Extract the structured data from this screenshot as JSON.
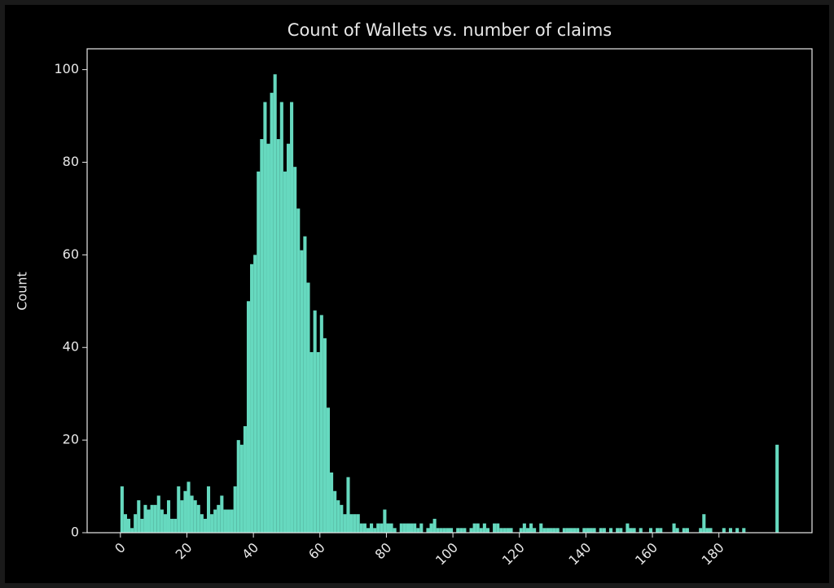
{
  "chart_data": {
    "type": "histogram",
    "title": "Count of Wallets vs. number of claims",
    "y_label": "Count",
    "bins": [
      0,
      1,
      2,
      3,
      4,
      5,
      6,
      7,
      8,
      9,
      10,
      11,
      12,
      13,
      14,
      15,
      16,
      17,
      18,
      19,
      20,
      21,
      22,
      23,
      24,
      25,
      26,
      27,
      28,
      29,
      30,
      31,
      32,
      33,
      34,
      35,
      36,
      37,
      38,
      39,
      40,
      41,
      42,
      43,
      44,
      45,
      46,
      47,
      48,
      49,
      50,
      51,
      52,
      53,
      54,
      55,
      56,
      57,
      58,
      59,
      60,
      61,
      62,
      63,
      64,
      65,
      66,
      67,
      68,
      69,
      70,
      71,
      72,
      73,
      74,
      75,
      76,
      77,
      78,
      79,
      80,
      81,
      82,
      83,
      84,
      85,
      86,
      87,
      88,
      89,
      90,
      91,
      92,
      93,
      94,
      95,
      96,
      97,
      98,
      99,
      100,
      101,
      102,
      103,
      104,
      105,
      106,
      107,
      108,
      109,
      110,
      111,
      112,
      113,
      114,
      115,
      116,
      117,
      118,
      119,
      120,
      121,
      122,
      123,
      124,
      125,
      126,
      127,
      128,
      129,
      130,
      131,
      132,
      133,
      134,
      135,
      136,
      137,
      138,
      139,
      140,
      141,
      142,
      143,
      144,
      145,
      146,
      147,
      148,
      149,
      150,
      151,
      152,
      153,
      154,
      155,
      156,
      157,
      158,
      159,
      160,
      161,
      162,
      163,
      164,
      165,
      166,
      167,
      168,
      169,
      170,
      171,
      172,
      173,
      174,
      175,
      176,
      177,
      178,
      179,
      180,
      181,
      182,
      183,
      184,
      185,
      186,
      187,
      188,
      189,
      190,
      191,
      192,
      193,
      194,
      195,
      196,
      197,
      198
    ],
    "counts": [
      10,
      4,
      3,
      1,
      4,
      7,
      3,
      6,
      5,
      6,
      6,
      8,
      5,
      4,
      7,
      3,
      3,
      10,
      7,
      9,
      11,
      8,
      7,
      6,
      4,
      3,
      10,
      4,
      5,
      6,
      8,
      5,
      5,
      5,
      10,
      20,
      19,
      23,
      50,
      58,
      60,
      78,
      85,
      93,
      84,
      95,
      99,
      85,
      93,
      78,
      84,
      93,
      79,
      70,
      61,
      64,
      54,
      39,
      48,
      39,
      47,
      42,
      27,
      13,
      9,
      7,
      6,
      4,
      12,
      4,
      4,
      4,
      2,
      2,
      1,
      2,
      1,
      2,
      2,
      5,
      2,
      2,
      1,
      0,
      2,
      2,
      2,
      2,
      2,
      1,
      2,
      0,
      1,
      2,
      3,
      1,
      1,
      1,
      1,
      1,
      0,
      1,
      1,
      1,
      0,
      1,
      2,
      2,
      1,
      2,
      1,
      0,
      2,
      2,
      1,
      1,
      1,
      1,
      0,
      0,
      1,
      2,
      1,
      2,
      1,
      0,
      2,
      1,
      1,
      1,
      1,
      1,
      0,
      1,
      1,
      1,
      1,
      1,
      0,
      1,
      1,
      1,
      1,
      0,
      1,
      1,
      0,
      1,
      0,
      1,
      1,
      0,
      2,
      1,
      1,
      0,
      1,
      0,
      0,
      1,
      0,
      1,
      1,
      0,
      0,
      0,
      2,
      1,
      0,
      1,
      1,
      0,
      0,
      0,
      1,
      4,
      1,
      1,
      0,
      0,
      0,
      1,
      0,
      1,
      0,
      1,
      0,
      1,
      0,
      0,
      0,
      0,
      0,
      0,
      0,
      0,
      0,
      19
    ],
    "color": "#66d9bf",
    "xlim": [
      -10,
      208
    ],
    "ylim": [
      0,
      104.5
    ],
    "xticks": [
      0,
      20,
      40,
      60,
      80,
      100,
      120,
      140,
      160,
      180
    ],
    "yticks": [
      0,
      20,
      40,
      60,
      80,
      100
    ]
  }
}
